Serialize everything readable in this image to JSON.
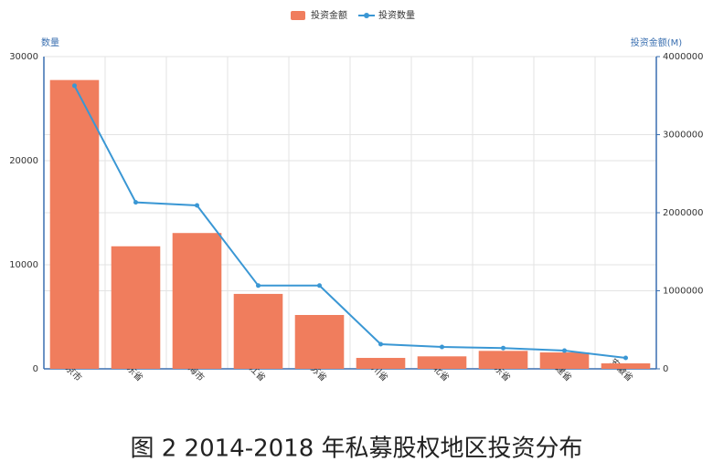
{
  "chart_data": {
    "type": "bar",
    "caption": "图 2 2014-2018 年私募股权地区投资分布",
    "y_label": "数量",
    "y2_label": "投资金额(M)",
    "categories": [
      "北京市",
      "广东省",
      "上海市",
      "浙江省",
      "江苏省",
      "四川省",
      "湖北省",
      "山东省",
      "福建省",
      "安徽省"
    ],
    "series": [
      {
        "name": "投资金额",
        "type": "bar",
        "axis": "y2",
        "color": "#f07d5d",
        "values": [
          3700000,
          1570000,
          1740000,
          960000,
          690000,
          140000,
          160000,
          230000,
          210000,
          70000
        ]
      },
      {
        "name": "投资数量",
        "type": "line",
        "color": "#3a97d4",
        "values": [
          27200,
          16000,
          15700,
          8000,
          8000,
          2370,
          2100,
          2000,
          1750,
          1050
        ]
      }
    ],
    "ylim": [
      0,
      30000
    ],
    "yticks": [
      0,
      10000,
      20000,
      30000
    ],
    "y2lim": [
      0,
      4000000
    ],
    "y2ticks": [
      0,
      1000000,
      2000000,
      3000000,
      4000000
    ],
    "grid": true
  }
}
